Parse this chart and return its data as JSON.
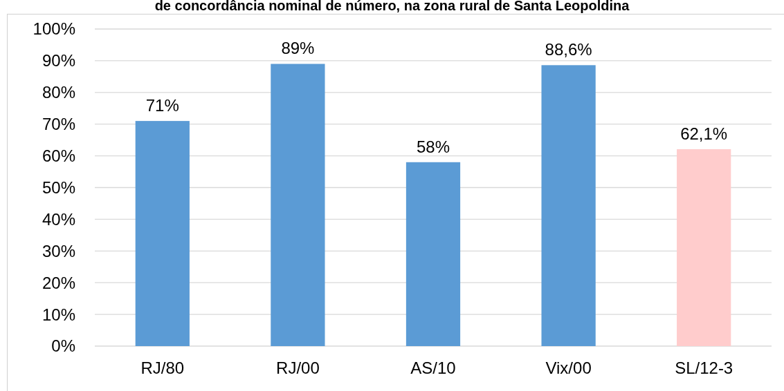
{
  "chart_data": {
    "type": "bar",
    "title": "de concordância nominal de número, na zona rural de Santa Leopoldina",
    "categories": [
      "RJ/80",
      "RJ/00",
      "AS/10",
      "Vix/00",
      "SL/12-3"
    ],
    "values": [
      71,
      89,
      58,
      88.6,
      62.1
    ],
    "value_labels": [
      "71%",
      "89%",
      "58%",
      "88,6%",
      "62,1%"
    ],
    "colors": [
      "#5b9bd5",
      "#5b9bd5",
      "#5b9bd5",
      "#5b9bd5",
      "#ffcccc"
    ],
    "ylim": [
      0,
      100
    ],
    "yticks": [
      {
        "value": 0,
        "label": "0%"
      },
      {
        "value": 10,
        "label": "10%"
      },
      {
        "value": 20,
        "label": "20%"
      },
      {
        "value": 30,
        "label": "30%"
      },
      {
        "value": 40,
        "label": "40%"
      },
      {
        "value": 50,
        "label": "50%"
      },
      {
        "value": 60,
        "label": "60%"
      },
      {
        "value": 70,
        "label": "70%"
      },
      {
        "value": 80,
        "label": "80%"
      },
      {
        "value": 90,
        "label": "90%"
      },
      {
        "value": 100,
        "label": "100%"
      }
    ],
    "grid": "y"
  }
}
